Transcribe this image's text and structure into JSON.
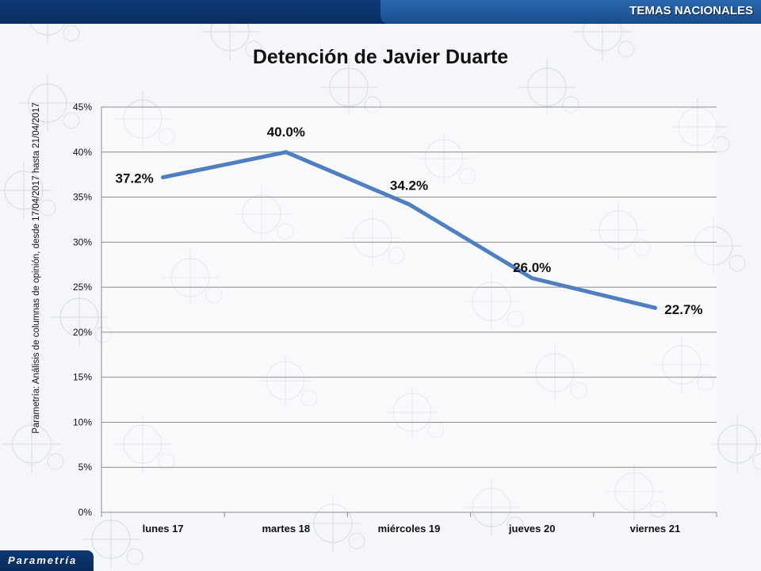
{
  "header": {
    "section_label": "TEMAS NACIONALES"
  },
  "footer": {
    "logo_text": "Parametría"
  },
  "side_note": "Parametría: Análisis de columnas de opinión, desde 17/04/2017 hasta 21/04/2017",
  "colors": {
    "line": "#4f7fc0",
    "grid": "#8c8c8c",
    "header_dark": "#0d3a78",
    "header_tab": "#2a67ad"
  },
  "chart_data": {
    "type": "line",
    "title": "Detención de Javier Duarte",
    "xlabel": "",
    "ylabel": "",
    "categories": [
      "lunes 17",
      "martes 18",
      "miércoles 19",
      "jueves 20",
      "viernes 21"
    ],
    "series": [
      {
        "values": [
          37.2,
          40.0,
          34.2,
          26.0,
          22.7
        ],
        "data_labels": [
          "37.2%",
          "40.0%",
          "34.2%",
          "26.0%",
          "22.7%"
        ]
      }
    ],
    "ylim": [
      0,
      45
    ],
    "yticks": [
      0,
      5,
      10,
      15,
      20,
      25,
      30,
      35,
      40,
      45
    ],
    "ytick_labels": [
      "0%",
      "5%",
      "10%",
      "15%",
      "20%",
      "25%",
      "30%",
      "35%",
      "40%",
      "45%"
    ],
    "grid": true,
    "legend": "none"
  }
}
